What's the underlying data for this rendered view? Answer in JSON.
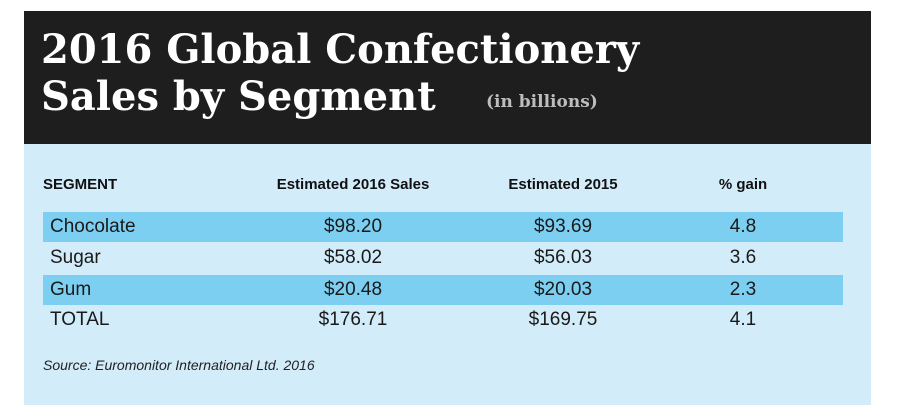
{
  "chart_data": {
    "type": "table",
    "title_line1": "2016 Global Confectionery",
    "title_line2": "Sales by Segment",
    "subtitle": "(in billions)",
    "columns": [
      "SEGMENT",
      "Estimated 2016 Sales",
      "Estimated 2015",
      "% gain"
    ],
    "rows": [
      {
        "segment": "Chocolate",
        "sales_2016": "$98.20",
        "sales_2015": "$93.69",
        "gain": "4.8"
      },
      {
        "segment": "Sugar",
        "sales_2016": "$58.02",
        "sales_2015": "$56.03",
        "gain": "3.6"
      },
      {
        "segment": "Gum",
        "sales_2016": "$20.48",
        "sales_2015": "$20.03",
        "gain": "2.3"
      },
      {
        "segment": "TOTAL",
        "sales_2016": "$176.71",
        "sales_2015": "$169.75",
        "gain": "4.1"
      }
    ],
    "source": "Source: Euromonitor International Ltd. 2016"
  },
  "colors": {
    "header_bg": "#1e1e1e",
    "card_bg": "#d3ecfa",
    "row_highlight": "#7ccff1",
    "subtitle": "#bdbdbd"
  }
}
